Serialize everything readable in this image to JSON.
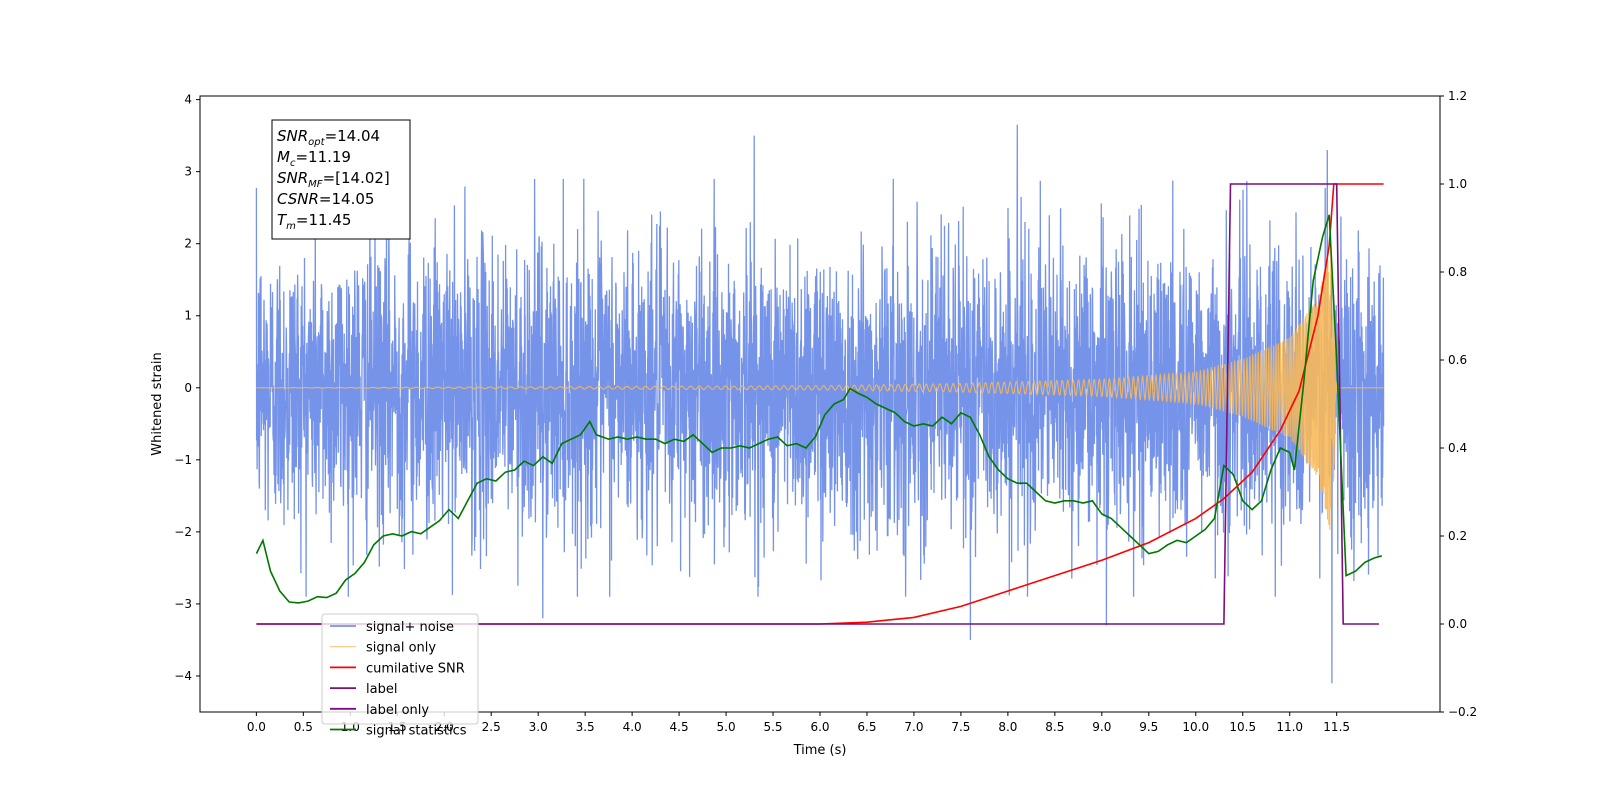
{
  "chart_data": {
    "type": "line",
    "xlabel": "Time (s)",
    "ylabel": "Whitened strain",
    "xlim": [
      -0.6,
      12.6
    ],
    "ylim": [
      -4.5,
      4.05
    ],
    "y2lim": [
      -0.2,
      1.2
    ],
    "x_ticks": [
      "0.0",
      "0.5",
      "1.0",
      "1.5",
      "2.0",
      "2.5",
      "3.0",
      "3.5",
      "4.0",
      "4.5",
      "5.0",
      "5.5",
      "6.0",
      "6.5",
      "7.0",
      "7.5",
      "8.0",
      "8.5",
      "9.0",
      "9.5",
      "10.0",
      "10.5",
      "11.0",
      "11.5"
    ],
    "y_ticks": [
      "4",
      "3",
      "2",
      "1",
      "0",
      "−1",
      "−2",
      "−3",
      "−4"
    ],
    "y2_ticks": [
      "1.2",
      "1.0",
      "0.8",
      "0.6",
      "0.4",
      "0.2",
      "0.0",
      "−0.2"
    ],
    "legend_position": "lower-left",
    "info_box": [
      {
        "base": "SNR",
        "sub": "opt",
        "value": "=14.04"
      },
      {
        "base": "M",
        "sub": "c",
        "value": "=11.19"
      },
      {
        "base": "SNR",
        "sub": "MF",
        "value": "=[14.02]"
      },
      {
        "base": "CSNR",
        "sub": "",
        "value": "=14.05"
      },
      {
        "base": "T",
        "sub": "m",
        "value": "=11.45"
      }
    ],
    "series": [
      {
        "name": "signal+ noise",
        "color": "#7593e8",
        "axis": "left",
        "kind": "noise",
        "x_range": [
          0.0,
          12.0
        ],
        "amplitude_sigma": 1.0,
        "peaks": [
          [
            5.3,
            3.5
          ],
          [
            8.1,
            3.65
          ],
          [
            11.4,
            3.3
          ],
          [
            11.45,
            -4.1
          ],
          [
            7.6,
            -3.5
          ],
          [
            9.05,
            -3.3
          ],
          [
            3.05,
            -3.2
          ],
          [
            0.05,
            1.55
          ]
        ]
      },
      {
        "name": "signal only",
        "color": "#f7b95a",
        "axis": "left",
        "kind": "chirp",
        "x_range": [
          0.0,
          12.0
        ],
        "merger_time": 11.45,
        "amplitude_points": [
          [
            0.0,
            0.0
          ],
          [
            6.0,
            0.03
          ],
          [
            7.5,
            0.06
          ],
          [
            9.0,
            0.12
          ],
          [
            10.0,
            0.22
          ],
          [
            10.5,
            0.4
          ],
          [
            11.0,
            0.7
          ],
          [
            11.3,
            1.25
          ],
          [
            11.45,
            2.1
          ],
          [
            11.5,
            0.0
          ],
          [
            12.0,
            0.0
          ]
        ]
      },
      {
        "name": "cumilative SNR",
        "color": "#ff0000",
        "axis": "right",
        "points": [
          [
            0.0,
            0.0
          ],
          [
            6.0,
            0.0
          ],
          [
            6.5,
            0.004
          ],
          [
            7.0,
            0.015
          ],
          [
            7.5,
            0.04
          ],
          [
            8.0,
            0.075
          ],
          [
            8.5,
            0.11
          ],
          [
            9.0,
            0.145
          ],
          [
            9.5,
            0.185
          ],
          [
            10.0,
            0.24
          ],
          [
            10.3,
            0.285
          ],
          [
            10.6,
            0.345
          ],
          [
            10.9,
            0.44
          ],
          [
            11.1,
            0.53
          ],
          [
            11.3,
            0.7
          ],
          [
            11.42,
            0.86
          ],
          [
            11.47,
            1.0
          ],
          [
            12.0,
            1.0
          ]
        ]
      },
      {
        "name": "label",
        "color": "#7b0f7b",
        "axis": "right",
        "points": [
          [
            0.0,
            0.0
          ],
          [
            10.3,
            0.0
          ],
          [
            10.37,
            1.0
          ],
          [
            11.5,
            1.0
          ],
          [
            11.57,
            0.0
          ],
          [
            11.95,
            0.0
          ]
        ]
      },
      {
        "name": "label only",
        "color": "#7b0f7b",
        "axis": "right",
        "points": []
      },
      {
        "name": "signal statistics",
        "color": "#007800",
        "axis": "right",
        "points": [
          [
            0.0,
            0.16
          ],
          [
            0.07,
            0.19
          ],
          [
            0.15,
            0.12
          ],
          [
            0.25,
            0.075
          ],
          [
            0.35,
            0.05
          ],
          [
            0.45,
            0.048
          ],
          [
            0.55,
            0.052
          ],
          [
            0.65,
            0.062
          ],
          [
            0.75,
            0.06
          ],
          [
            0.85,
            0.07
          ],
          [
            0.95,
            0.1
          ],
          [
            1.05,
            0.115
          ],
          [
            1.15,
            0.14
          ],
          [
            1.25,
            0.18
          ],
          [
            1.35,
            0.2
          ],
          [
            1.45,
            0.205
          ],
          [
            1.55,
            0.2
          ],
          [
            1.65,
            0.21
          ],
          [
            1.75,
            0.205
          ],
          [
            1.85,
            0.22
          ],
          [
            1.95,
            0.235
          ],
          [
            2.05,
            0.26
          ],
          [
            2.15,
            0.24
          ],
          [
            2.25,
            0.28
          ],
          [
            2.35,
            0.32
          ],
          [
            2.45,
            0.33
          ],
          [
            2.55,
            0.325
          ],
          [
            2.65,
            0.345
          ],
          [
            2.75,
            0.35
          ],
          [
            2.85,
            0.37
          ],
          [
            2.95,
            0.36
          ],
          [
            3.05,
            0.38
          ],
          [
            3.15,
            0.365
          ],
          [
            3.25,
            0.41
          ],
          [
            3.35,
            0.42
          ],
          [
            3.45,
            0.43
          ],
          [
            3.55,
            0.46
          ],
          [
            3.62,
            0.43
          ],
          [
            3.75,
            0.42
          ],
          [
            3.85,
            0.425
          ],
          [
            3.95,
            0.42
          ],
          [
            4.05,
            0.425
          ],
          [
            4.15,
            0.42
          ],
          [
            4.25,
            0.42
          ],
          [
            4.35,
            0.41
          ],
          [
            4.45,
            0.42
          ],
          [
            4.55,
            0.415
          ],
          [
            4.65,
            0.43
          ],
          [
            4.75,
            0.41
          ],
          [
            4.85,
            0.39
          ],
          [
            4.95,
            0.4
          ],
          [
            5.05,
            0.4
          ],
          [
            5.15,
            0.405
          ],
          [
            5.25,
            0.4
          ],
          [
            5.35,
            0.41
          ],
          [
            5.45,
            0.42
          ],
          [
            5.55,
            0.425
          ],
          [
            5.65,
            0.405
          ],
          [
            5.75,
            0.41
          ],
          [
            5.85,
            0.4
          ],
          [
            5.95,
            0.425
          ],
          [
            6.05,
            0.475
          ],
          [
            6.15,
            0.5
          ],
          [
            6.25,
            0.51
          ],
          [
            6.32,
            0.535
          ],
          [
            6.4,
            0.525
          ],
          [
            6.5,
            0.515
          ],
          [
            6.6,
            0.5
          ],
          [
            6.7,
            0.49
          ],
          [
            6.8,
            0.48
          ],
          [
            6.9,
            0.46
          ],
          [
            7.0,
            0.45
          ],
          [
            7.1,
            0.455
          ],
          [
            7.2,
            0.45
          ],
          [
            7.3,
            0.47
          ],
          [
            7.4,
            0.455
          ],
          [
            7.5,
            0.48
          ],
          [
            7.6,
            0.47
          ],
          [
            7.7,
            0.43
          ],
          [
            7.8,
            0.38
          ],
          [
            7.9,
            0.35
          ],
          [
            8.0,
            0.33
          ],
          [
            8.1,
            0.32
          ],
          [
            8.2,
            0.32
          ],
          [
            8.3,
            0.3
          ],
          [
            8.4,
            0.28
          ],
          [
            8.5,
            0.275
          ],
          [
            8.6,
            0.28
          ],
          [
            8.7,
            0.28
          ],
          [
            8.8,
            0.275
          ],
          [
            8.9,
            0.28
          ],
          [
            9.0,
            0.25
          ],
          [
            9.1,
            0.24
          ],
          [
            9.2,
            0.22
          ],
          [
            9.3,
            0.2
          ],
          [
            9.4,
            0.18
          ],
          [
            9.5,
            0.16
          ],
          [
            9.6,
            0.165
          ],
          [
            9.7,
            0.18
          ],
          [
            9.8,
            0.19
          ],
          [
            9.9,
            0.185
          ],
          [
            10.0,
            0.2
          ],
          [
            10.1,
            0.215
          ],
          [
            10.2,
            0.24
          ],
          [
            10.3,
            0.36
          ],
          [
            10.4,
            0.34
          ],
          [
            10.5,
            0.28
          ],
          [
            10.6,
            0.26
          ],
          [
            10.7,
            0.28
          ],
          [
            10.8,
            0.35
          ],
          [
            10.9,
            0.4
          ],
          [
            11.0,
            0.39
          ],
          [
            11.05,
            0.35
          ],
          [
            11.15,
            0.55
          ],
          [
            11.25,
            0.78
          ],
          [
            11.35,
            0.88
          ],
          [
            11.42,
            0.93
          ],
          [
            11.5,
            0.6
          ],
          [
            11.6,
            0.11
          ],
          [
            11.7,
            0.12
          ],
          [
            11.8,
            0.14
          ],
          [
            11.9,
            0.15
          ],
          [
            11.98,
            0.155
          ]
        ]
      }
    ]
  }
}
